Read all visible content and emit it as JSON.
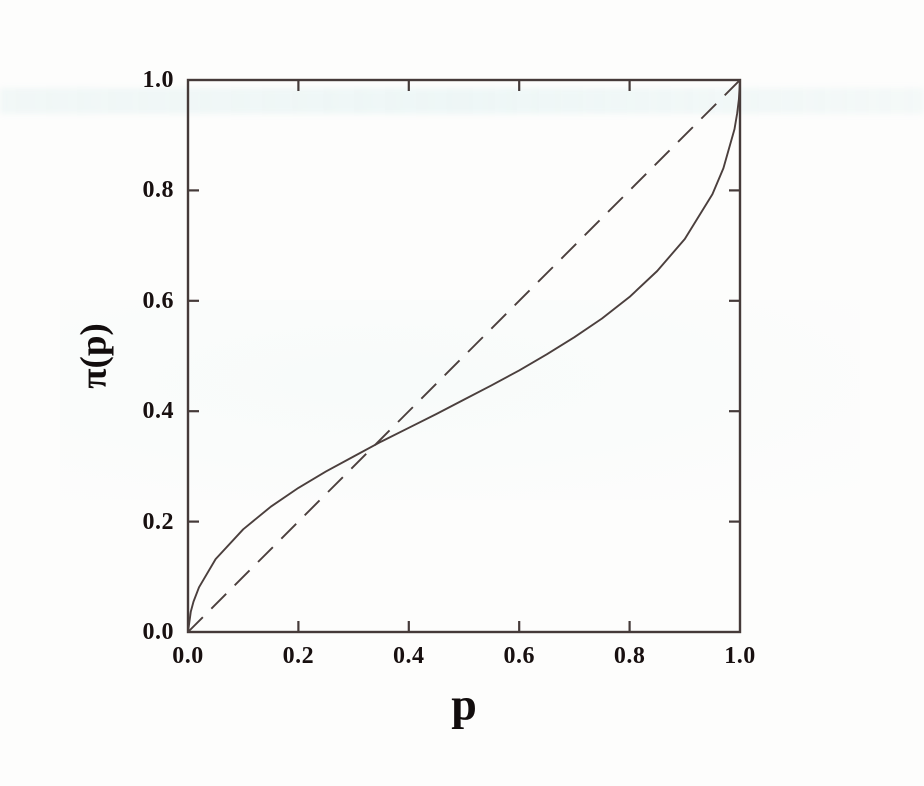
{
  "figure_colors": {
    "curve": "#4b3f3d",
    "identity_line": "#4b3f3d",
    "axis": "#453a39",
    "text": "#181010",
    "background": "#fdfdfc"
  },
  "chart_data": {
    "type": "line",
    "title": "",
    "xlabel": "p",
    "ylabel": "π(p)",
    "xlim": [
      0,
      1
    ],
    "ylim": [
      0,
      1
    ],
    "grid": false,
    "legend": "none",
    "x_tick_values": [
      0,
      0.2,
      0.4,
      0.6,
      0.8,
      1.0
    ],
    "y_tick_values": [
      0,
      0.2,
      0.4,
      0.6,
      0.8,
      1.0
    ],
    "x_tick_labels": [
      "0.0",
      "0.2",
      "0.4",
      "0.6",
      "0.8",
      "1.0"
    ],
    "y_tick_labels": [
      "0.0",
      "0.2",
      "0.4",
      "0.6",
      "0.8",
      "1.0"
    ],
    "description": "Probability weighting function pi(p) crossing the 45-degree identity line near p = 0.33; overweights small probabilities, underweights moderate-to-large ones, steep near 0 and 1.",
    "series": [
      {
        "name": "probability-weighting-curve",
        "style": "solid",
        "x": [
          0,
          0.005,
          0.01,
          0.02,
          0.05,
          0.1,
          0.15,
          0.2,
          0.25,
          0.3,
          0.35,
          0.4,
          0.45,
          0.5,
          0.55,
          0.6,
          0.65,
          0.7,
          0.75,
          0.8,
          0.85,
          0.9,
          0.95,
          0.97,
          0.99,
          0.995,
          0.998,
          1.0
        ],
        "y": [
          0,
          0.037,
          0.055,
          0.081,
          0.132,
          0.186,
          0.227,
          0.261,
          0.291,
          0.318,
          0.345,
          0.37,
          0.395,
          0.421,
          0.447,
          0.474,
          0.503,
          0.534,
          0.568,
          0.607,
          0.654,
          0.712,
          0.793,
          0.84,
          0.911,
          0.94,
          0.965,
          1.0
        ]
      },
      {
        "name": "identity-diagonal",
        "style": "dashed",
        "x": [
          0,
          1
        ],
        "y": [
          0,
          1
        ]
      }
    ]
  }
}
